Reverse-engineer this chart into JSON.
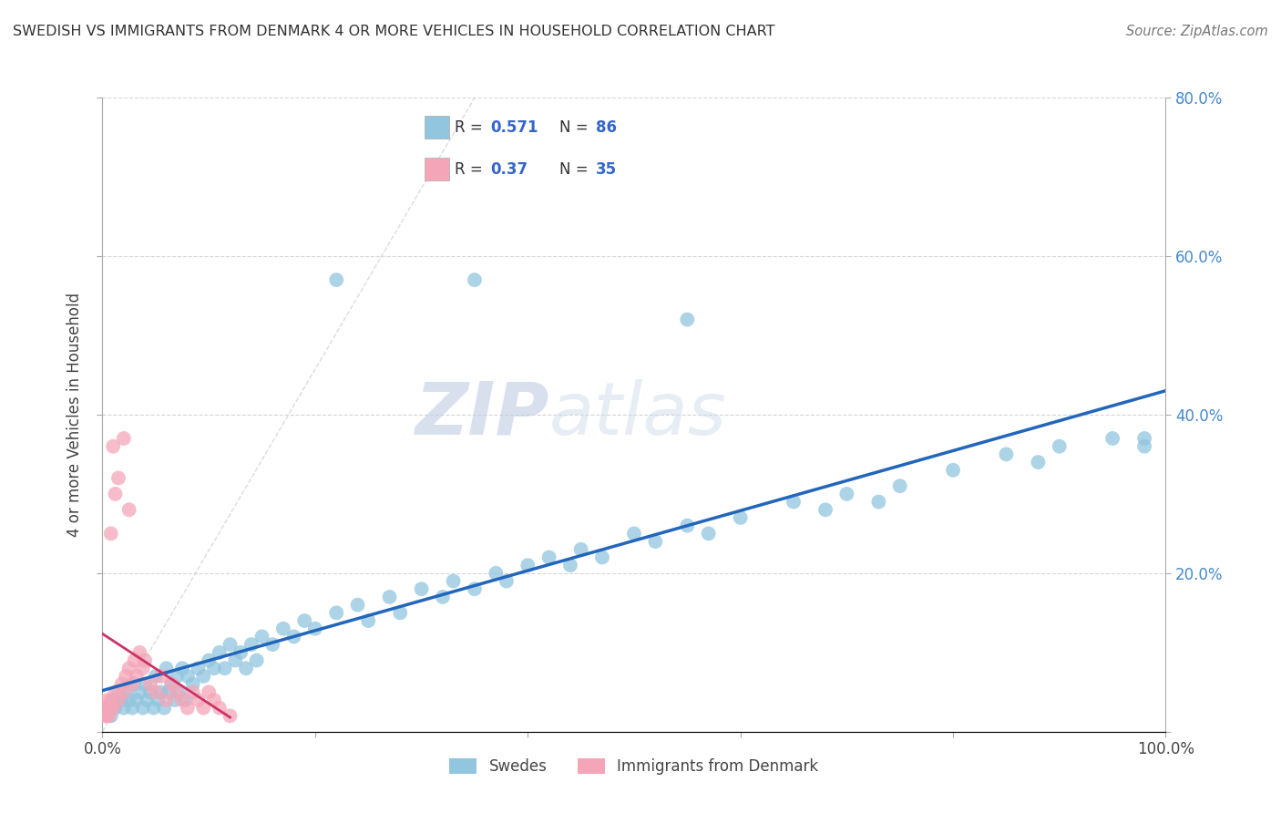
{
  "title": "SWEDISH VS IMMIGRANTS FROM DENMARK 4 OR MORE VEHICLES IN HOUSEHOLD CORRELATION CHART",
  "source": "Source: ZipAtlas.com",
  "ylabel": "4 or more Vehicles in Household",
  "legend_label1": "Swedes",
  "legend_label2": "Immigrants from Denmark",
  "R1": 0.571,
  "N1": 86,
  "R2": 0.37,
  "N2": 35,
  "color_swedes": "#92c5de",
  "color_denmark": "#f4a6b8",
  "color_line_swedes": "#2266bb",
  "color_line_denmark": "#cc3366",
  "color_diag": "#cccccc",
  "color_grid": "#cccccc",
  "color_tick_right": "#4488cc",
  "xmin": 0,
  "xmax": 100,
  "ymin": 0,
  "ymax": 80,
  "sw_x": [
    0.5,
    0.8,
    1.0,
    1.2,
    1.5,
    1.8,
    2.0,
    2.2,
    2.5,
    2.8,
    3.0,
    3.2,
    3.5,
    3.8,
    4.0,
    4.2,
    4.5,
    4.8,
    5.0,
    5.2,
    5.5,
    5.8,
    6.0,
    6.2,
    6.5,
    6.8,
    7.0,
    7.2,
    7.5,
    7.8,
    8.0,
    8.5,
    9.0,
    9.5,
    10.0,
    10.5,
    11.0,
    11.5,
    12.0,
    12.5,
    13.0,
    13.5,
    14.0,
    14.5,
    15.0,
    16.0,
    17.0,
    18.0,
    19.0,
    20.0,
    22.0,
    24.0,
    25.0,
    27.0,
    28.0,
    30.0,
    32.0,
    33.0,
    35.0,
    37.0,
    38.0,
    40.0,
    42.0,
    44.0,
    45.0,
    47.0,
    50.0,
    52.0,
    55.0,
    57.0,
    60.0,
    65.0,
    68.0,
    70.0,
    73.0,
    75.0,
    80.0,
    85.0,
    88.0,
    90.0,
    95.0,
    98.0,
    22.0,
    35.0,
    55.0,
    98.0
  ],
  "sw_y": [
    3.0,
    2.0,
    4.0,
    3.0,
    5.0,
    4.0,
    3.0,
    5.0,
    4.0,
    3.0,
    6.0,
    4.0,
    5.0,
    3.0,
    6.0,
    4.0,
    5.0,
    3.0,
    7.0,
    4.0,
    5.0,
    3.0,
    8.0,
    5.0,
    6.0,
    4.0,
    7.0,
    5.0,
    8.0,
    4.0,
    7.0,
    6.0,
    8.0,
    7.0,
    9.0,
    8.0,
    10.0,
    8.0,
    11.0,
    9.0,
    10.0,
    8.0,
    11.0,
    9.0,
    12.0,
    11.0,
    13.0,
    12.0,
    14.0,
    13.0,
    15.0,
    16.0,
    14.0,
    17.0,
    15.0,
    18.0,
    17.0,
    19.0,
    18.0,
    20.0,
    19.0,
    21.0,
    22.0,
    21.0,
    23.0,
    22.0,
    25.0,
    24.0,
    26.0,
    25.0,
    27.0,
    29.0,
    28.0,
    30.0,
    29.0,
    31.0,
    33.0,
    35.0,
    34.0,
    36.0,
    37.0,
    36.0,
    57.0,
    57.0,
    52.0,
    37.0
  ],
  "dk_x": [
    0.2,
    0.3,
    0.4,
    0.5,
    0.6,
    0.7,
    0.8,
    1.0,
    1.2,
    1.5,
    1.8,
    2.0,
    2.2,
    2.5,
    2.8,
    3.0,
    3.2,
    3.5,
    3.8,
    4.0,
    4.5,
    5.0,
    5.5,
    6.0,
    6.5,
    7.0,
    7.5,
    8.0,
    8.5,
    9.0,
    9.5,
    10.0,
    10.5,
    11.0,
    12.0
  ],
  "dk_y": [
    2.0,
    3.0,
    2.0,
    4.0,
    2.0,
    3.0,
    4.0,
    3.0,
    5.0,
    4.0,
    6.0,
    5.0,
    7.0,
    8.0,
    6.0,
    9.0,
    7.0,
    10.0,
    8.0,
    9.0,
    6.0,
    5.0,
    7.0,
    4.0,
    6.0,
    5.0,
    4.0,
    3.0,
    5.0,
    4.0,
    3.0,
    5.0,
    4.0,
    3.0,
    2.0
  ],
  "dk_outliers_x": [
    1.0,
    1.5,
    2.0,
    2.5,
    0.8,
    1.2
  ],
  "dk_outliers_y": [
    36.0,
    32.0,
    37.0,
    28.0,
    25.0,
    30.0
  ]
}
